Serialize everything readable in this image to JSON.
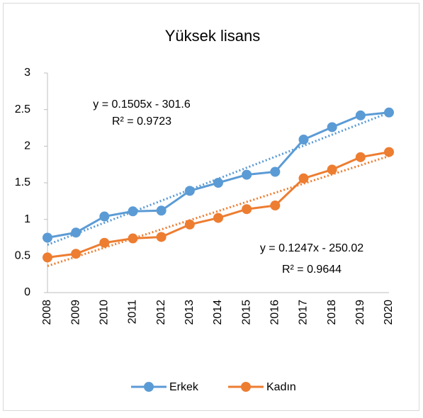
{
  "chart_data": {
    "type": "line",
    "title": "Yüksek lisans",
    "categories": [
      "2008",
      "2009",
      "2010",
      "2011",
      "2012",
      "2013",
      "2014",
      "2015",
      "2016",
      "2017",
      "2018",
      "2019",
      "2020"
    ],
    "series": [
      {
        "name": "Erkek",
        "color": "#5b9bd5",
        "values": [
          0.75,
          0.82,
          1.04,
          1.11,
          1.12,
          1.39,
          1.5,
          1.61,
          1.65,
          2.09,
          2.26,
          2.42,
          2.46
        ]
      },
      {
        "name": "Kadın",
        "color": "#ed7d31",
        "values": [
          0.48,
          0.53,
          0.68,
          0.74,
          0.76,
          0.93,
          1.02,
          1.14,
          1.19,
          1.56,
          1.68,
          1.85,
          1.92
        ]
      }
    ],
    "annotations": [
      "y = 0.1505x - 301.6",
      "R² = 0.9723",
      "y = 0.1247x - 250.02",
      "R² = 0.9644"
    ],
    "ylim": [
      0,
      3
    ],
    "yticks": [
      0,
      0.5,
      1,
      1.5,
      2,
      2.5,
      3
    ],
    "grid": false,
    "trendline": true,
    "legend": "bottom"
  }
}
